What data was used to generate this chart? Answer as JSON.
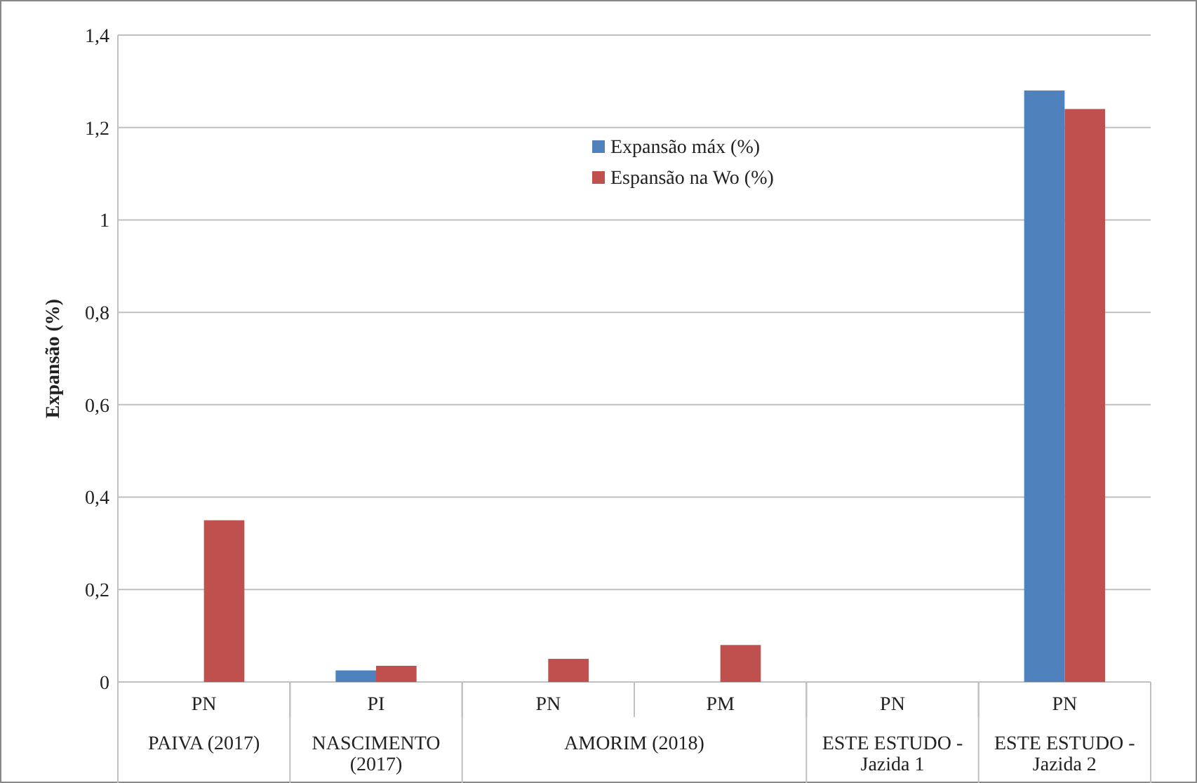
{
  "chart_data": {
    "type": "bar",
    "ylabel": "Expansão (%)",
    "categories": [
      "PN",
      "PI",
      "PN",
      "PM",
      "PN",
      "PN"
    ],
    "series": [
      {
        "name": "Expansão máx (%)",
        "color": "#4f81bd",
        "values": [
          null,
          0.025,
          null,
          null,
          null,
          1.28
        ]
      },
      {
        "name": "Espansão na Wo (%)",
        "color": "#c0504d",
        "values": [
          0.35,
          0.035,
          0.05,
          0.08,
          null,
          1.24
        ]
      }
    ],
    "ylim": [
      0,
      1.4
    ],
    "yticks": [
      {
        "value": 0,
        "label": "0"
      },
      {
        "value": 0.2,
        "label": "0,2"
      },
      {
        "value": 0.4,
        "label": "0,4"
      },
      {
        "value": 0.6,
        "label": "0,6"
      },
      {
        "value": 0.8,
        "label": "0,8"
      },
      {
        "value": 1,
        "label": "1"
      },
      {
        "value": 1.2,
        "label": "1,2"
      },
      {
        "value": 1.4,
        "label": "1,4"
      }
    ],
    "grid": "y",
    "legend": "top",
    "annotations": [
      "PAIVA (2017)",
      "NASCIMENTO (2017)",
      "AMORIM (2018)",
      "ESTE ESTUDO - Jazida 1",
      "ESTE ESTUDO - Jazida 2"
    ]
  }
}
